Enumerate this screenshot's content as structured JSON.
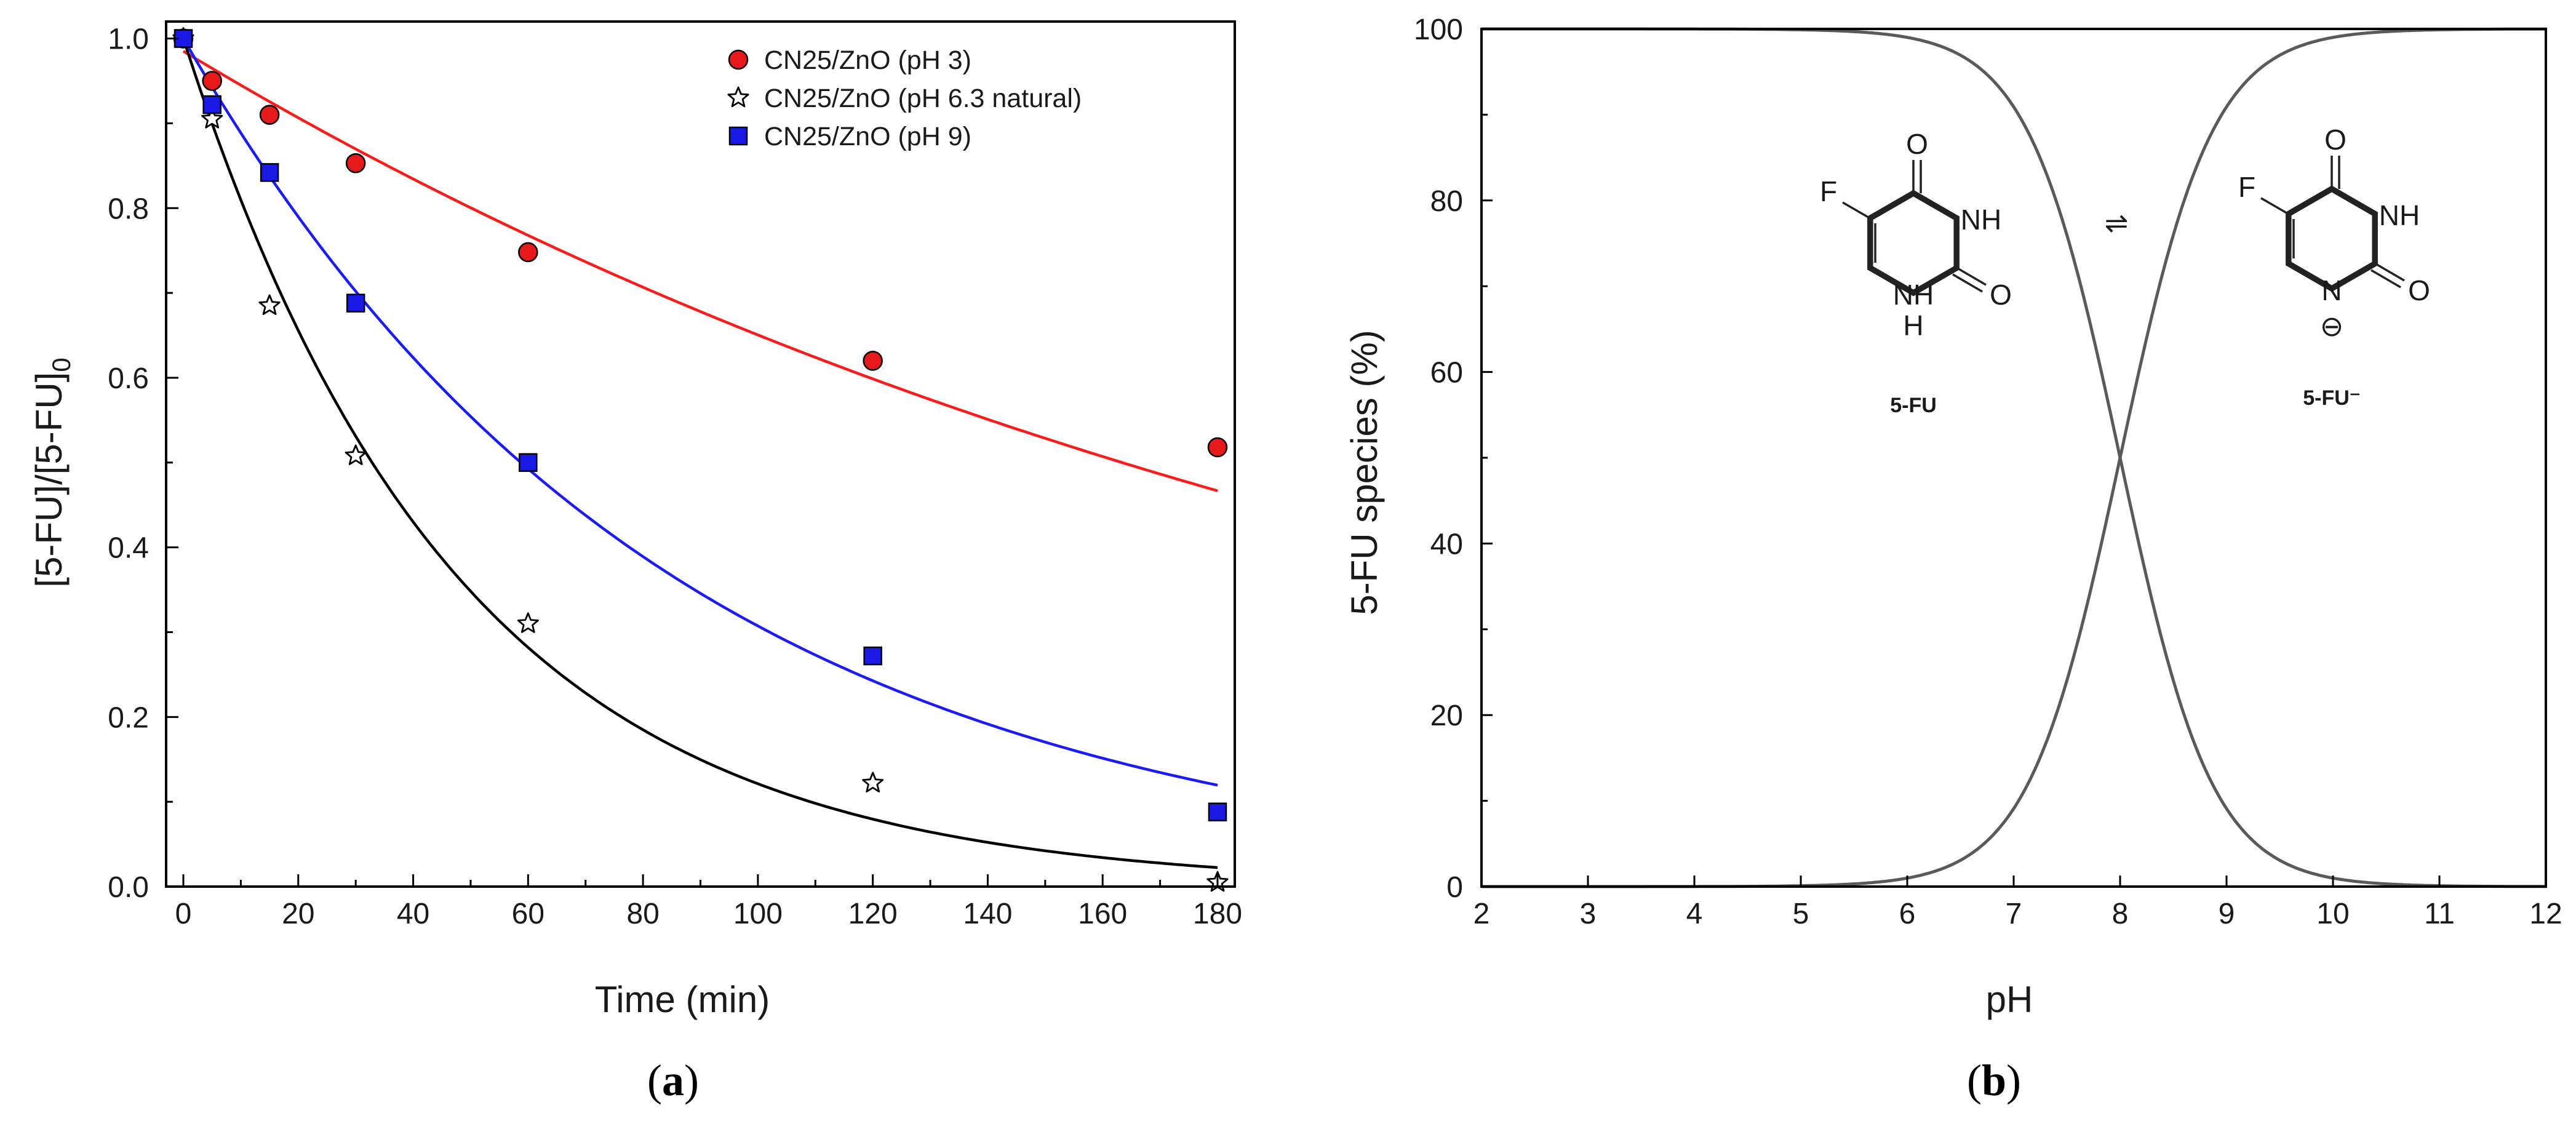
{
  "chart_data": [
    {
      "type": "scatter",
      "panel_label": "a",
      "title": "",
      "xlabel": "Time (min)",
      "ylabel_main": "[5-FU]/[5-FU]",
      "ylabel_sub": "0",
      "xlim": [
        -3,
        183
      ],
      "ylim": [
        0,
        1.02
      ],
      "xticks": [
        0,
        20,
        40,
        60,
        80,
        100,
        120,
        140,
        160,
        180
      ],
      "xtick_labels": [
        "0",
        "20",
        "40",
        "60",
        "80",
        "100",
        "120",
        "140",
        "160",
        "180"
      ],
      "yticks": [
        0.0,
        0.2,
        0.4,
        0.6,
        0.8,
        1.0
      ],
      "ytick_labels": [
        "0.0",
        "0.2",
        "0.4",
        "0.6",
        "0.8",
        "1.0"
      ],
      "legend_position": "top-right",
      "x": [
        0,
        5,
        15,
        30,
        60,
        120,
        180
      ],
      "series": [
        {
          "name": "CN25/ZnO (pH 3)",
          "marker": "circle",
          "color": "#e8191a",
          "values": [
            1.0,
            0.95,
            0.91,
            0.853,
            0.748,
            0.62,
            0.518
          ],
          "fit": {
            "k": 0.00415,
            "y0": 0.985,
            "color": "#ff1a1a"
          }
        },
        {
          "name": "CN25/ZnO (pH 6.3 natural)",
          "marker": "star",
          "color": "#ffffff",
          "values": [
            1.0,
            0.905,
            0.685,
            0.508,
            0.31,
            0.122,
            0.005
          ],
          "fit": {
            "k": 0.0211,
            "y0": 1.0,
            "color": "#000000"
          }
        },
        {
          "name": "CN25/ZnO (pH 9)",
          "marker": "square",
          "color": "#1a1ae6",
          "values": [
            1.0,
            0.922,
            0.842,
            0.688,
            0.5,
            0.272,
            0.088
          ],
          "fit": {
            "k": 0.0118,
            "y0": 1.0,
            "color": "#1a1aff"
          }
        }
      ]
    },
    {
      "type": "line",
      "panel_label": "b",
      "title": "",
      "xlabel": "pH",
      "ylabel": "5-FU species (%)",
      "xlim": [
        2,
        12
      ],
      "ylim": [
        0,
        100
      ],
      "xticks": [
        2,
        3,
        4,
        5,
        6,
        7,
        8,
        9,
        10,
        11,
        12
      ],
      "xtick_labels": [
        "2",
        "3",
        "4",
        "5",
        "6",
        "7",
        "8",
        "9",
        "10",
        "11",
        "12"
      ],
      "yticks": [
        0,
        20,
        40,
        60,
        80,
        100
      ],
      "ytick_labels": [
        "0",
        "20",
        "40",
        "60",
        "80",
        "100"
      ],
      "pKa": 8.0,
      "series": [
        {
          "name": "5-FU",
          "form": "neutral",
          "color": "#5a5a5a"
        },
        {
          "name": "5-FU⁻",
          "form": "anion",
          "color": "#5a5a5a"
        }
      ],
      "structure": {
        "atoms": {
          "F": "F",
          "O": "O",
          "NH": "NH",
          "H": "H",
          "N": "N",
          "minus": "⊖"
        },
        "labels": {
          "neutral": "5-FU",
          "anion": "5-FU⁻"
        },
        "equilibrium": "⇌"
      }
    }
  ]
}
